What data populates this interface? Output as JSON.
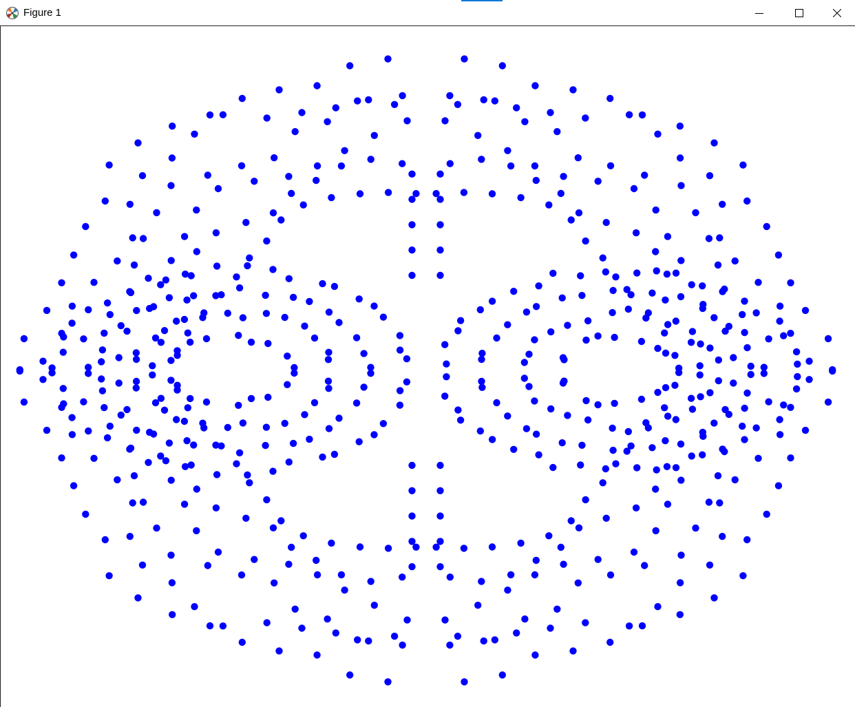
{
  "window": {
    "title": "Figure 1",
    "app_icon": "matplotlib-icon",
    "controls": {
      "minimize_icon": "minimize-icon",
      "maximize_icon": "maximize-icon",
      "close_icon": "close-icon"
    },
    "accent_color": "#0078d7"
  },
  "chart_data": {
    "type": "scatter",
    "marker_color": "#0000ff",
    "axes_visible": false,
    "grid": false,
    "legend": "none",
    "xlim": [
      -1.0,
      1.0
    ],
    "ylim": [
      -1.0,
      1.0
    ],
    "description_of_pattern": "",
    "series": [
      {
        "color": "#0000ff",
        "rings": [
          {
            "scale": 0.98,
            "count": 64,
            "phase": 0.02,
            "wobble": 0.03,
            "petals": 8
          },
          {
            "scale": 0.9,
            "count": 62,
            "phase": 0.31,
            "wobble": 0.05,
            "petals": 7
          },
          {
            "scale": 0.82,
            "count": 58,
            "phase": 0.11,
            "wobble": 0.04,
            "petals": 9
          },
          {
            "scale": 0.74,
            "count": 56,
            "phase": 0.47,
            "wobble": 0.05,
            "petals": 8
          },
          {
            "scale": 0.66,
            "count": 54,
            "phase": 0.19,
            "wobble": 0.04,
            "petals": 10
          },
          {
            "scale": 0.58,
            "count": 50,
            "phase": 0.63,
            "wobble": 0.05,
            "petals": 6
          }
        ],
        "left_lobe": {
          "cx": -0.48,
          "cy": 0.0,
          "rx": [
            0.44,
            0.34,
            0.24,
            0.15
          ],
          "ry": [
            0.32,
            0.25,
            0.18,
            0.11
          ],
          "count": [
            44,
            36,
            28,
            18
          ]
        },
        "right_lobe": {
          "cx": 0.48,
          "cy": 0.0,
          "rx": [
            0.44,
            0.34,
            0.24,
            0.15
          ],
          "ry": [
            0.32,
            0.25,
            0.18,
            0.11
          ],
          "count": [
            44,
            36,
            28,
            18
          ]
        },
        "center_column": {
          "x": 0.0,
          "y": [
            -0.62,
            -0.54,
            -0.46,
            -0.38,
            -0.3,
            0.3,
            0.38,
            0.46,
            0.54,
            0.62
          ],
          "spread": 0.035
        }
      }
    ]
  }
}
